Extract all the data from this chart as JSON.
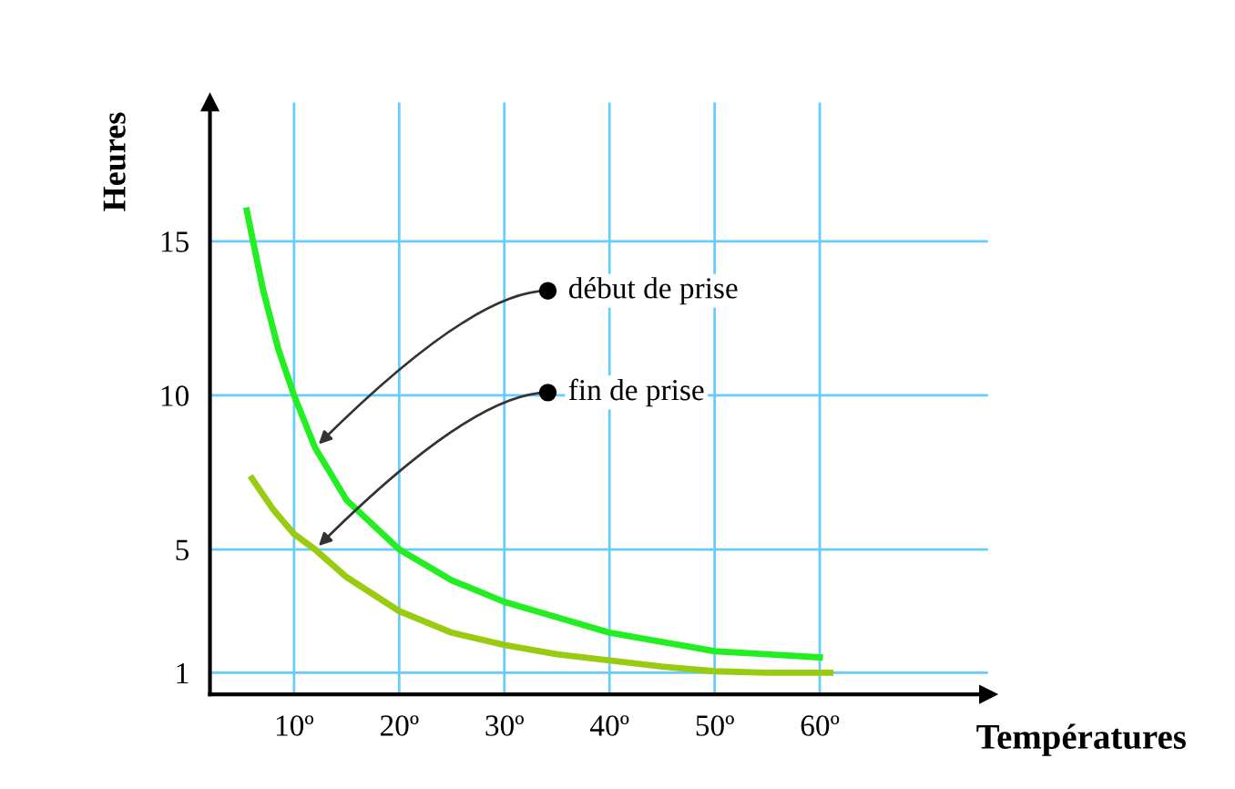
{
  "chart_data": {
    "type": "line",
    "xlabel": "Températures",
    "ylabel": "Heures",
    "xlim": [
      2,
      76
    ],
    "ylim": [
      0.3,
      19.5
    ],
    "xticks": [
      {
        "value": 10,
        "label": "10º"
      },
      {
        "value": 20,
        "label": "20º"
      },
      {
        "value": 30,
        "label": "30º"
      },
      {
        "value": 40,
        "label": "40º"
      },
      {
        "value": 50,
        "label": "50º"
      },
      {
        "value": 60,
        "label": "60º"
      }
    ],
    "yticks": [
      1,
      5,
      10,
      15
    ],
    "grid": true,
    "legend": false,
    "marker": "none",
    "line_style": "solid",
    "series": [
      {
        "color": "#22ee22",
        "x": [
          5.5,
          7,
          8.5,
          10,
          12,
          15,
          20,
          25,
          30,
          35,
          40,
          45,
          50,
          55,
          60
        ],
        "values": [
          16,
          13.5,
          11.5,
          10,
          8.3,
          6.6,
          5,
          4,
          3.3,
          2.8,
          2.3,
          2,
          1.7,
          1.6,
          1.5
        ]
      },
      {
        "color": "#99cc11",
        "x": [
          6,
          8,
          10,
          12,
          15,
          20,
          25,
          30,
          35,
          40,
          45,
          50,
          55,
          61
        ],
        "values": [
          7.3,
          6.3,
          5.5,
          5,
          4.1,
          3,
          2.3,
          1.9,
          1.6,
          1.4,
          1.2,
          1.05,
          1,
          1
        ]
      }
    ],
    "annotations": [
      {
        "text": "début de prise",
        "x": 12,
        "y": 8.3
      },
      {
        "text": "fin de prise",
        "x": 12,
        "y": 5
      }
    ]
  }
}
